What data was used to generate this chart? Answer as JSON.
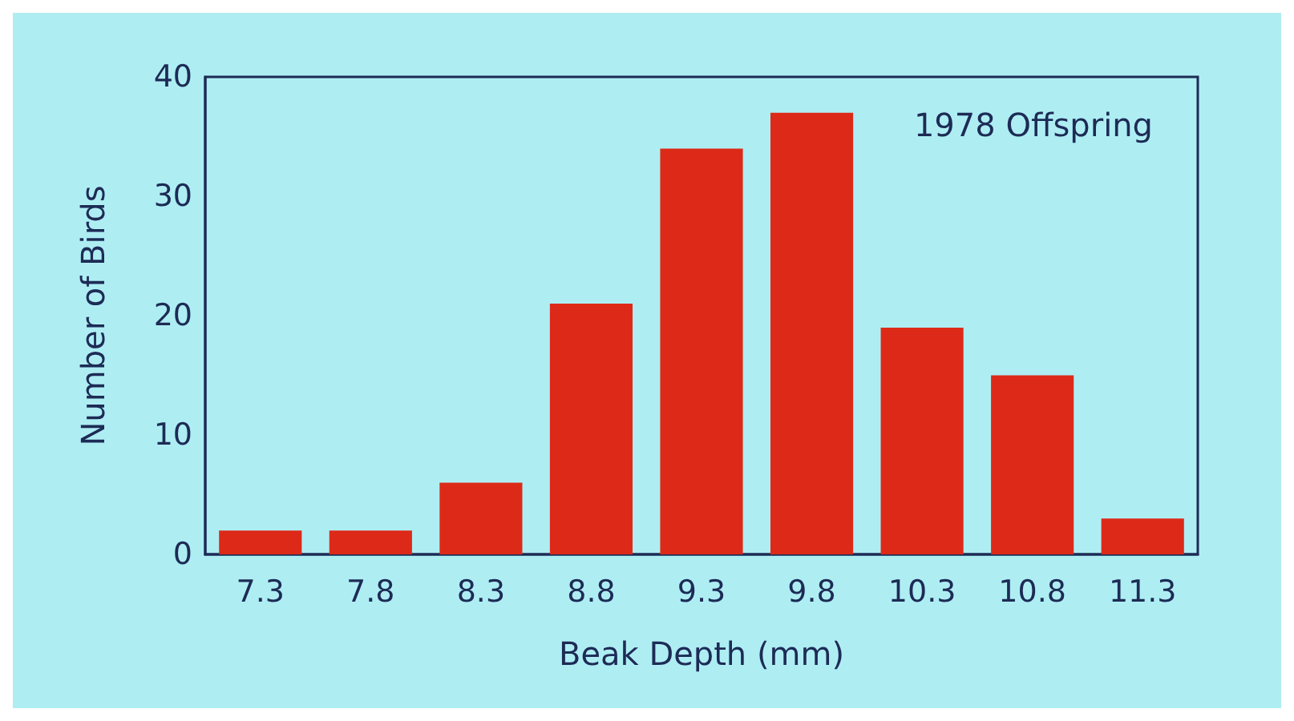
{
  "chart_data": {
    "type": "bar",
    "xlabel": "Beak Depth (mm)",
    "ylabel": "Number of Birds",
    "annotations": [
      "1978 Offspring"
    ],
    "categories": [
      "7.3",
      "7.8",
      "8.3",
      "8.8",
      "9.3",
      "9.8",
      "10.3",
      "10.8",
      "11.3"
    ],
    "values": [
      2,
      2,
      6,
      21,
      34,
      37,
      19,
      15,
      3
    ],
    "color": "#dd2a18",
    "ylim": [
      0,
      40
    ],
    "yticks": [
      0,
      10,
      20,
      30,
      40
    ],
    "grid": false
  }
}
